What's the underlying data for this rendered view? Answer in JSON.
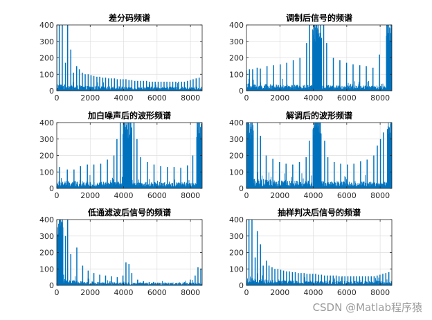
{
  "figure": {
    "watermark": "CSDN @Matlab程序猿",
    "colors": {
      "signal": "#0072BD",
      "axes": "#262626",
      "grid": "#dfdfdf",
      "background": "#ffffff"
    }
  },
  "chart_data": [
    {
      "type": "line",
      "title": "差分码频谱",
      "xlim": [
        0,
        8700
      ],
      "ylim": [
        0,
        400
      ],
      "grid": true,
      "xticks": [
        0,
        2000,
        4000,
        6000,
        8000
      ],
      "yticks": [
        0,
        100,
        200,
        300,
        400
      ],
      "floor": {
        "base": 20,
        "amp": 18,
        "decay": 1500,
        "min": 8
      },
      "peaks": [
        [
          0,
          400
        ],
        [
          150,
          400
        ],
        [
          330,
          400
        ],
        [
          520,
          170
        ],
        [
          650,
          400
        ],
        [
          840,
          250
        ],
        [
          1000,
          110
        ],
        [
          1190,
          150
        ],
        [
          1350,
          130
        ],
        [
          1530,
          110
        ],
        [
          1700,
          100
        ],
        [
          1880,
          100
        ],
        [
          2050,
          95
        ],
        [
          2220,
          90
        ],
        [
          2400,
          85
        ],
        [
          2570,
          85
        ],
        [
          2750,
          80
        ],
        [
          2920,
          80
        ],
        [
          3100,
          75
        ],
        [
          3270,
          75
        ],
        [
          3450,
          75
        ],
        [
          3620,
          70
        ],
        [
          3800,
          70
        ],
        [
          3970,
          70
        ],
        [
          4140,
          70
        ],
        [
          4320,
          65
        ],
        [
          4490,
          65
        ],
        [
          4670,
          60
        ],
        [
          4840,
          60
        ],
        [
          5020,
          60
        ],
        [
          5190,
          60
        ],
        [
          5370,
          60
        ],
        [
          5540,
          55
        ],
        [
          5720,
          55
        ],
        [
          5890,
          55
        ],
        [
          6070,
          55
        ],
        [
          6240,
          55
        ],
        [
          6420,
          55
        ],
        [
          6590,
          55
        ],
        [
          6770,
          55
        ],
        [
          6940,
          55
        ],
        [
          7120,
          55
        ],
        [
          7290,
          55
        ],
        [
          7470,
          55
        ],
        [
          7640,
          55
        ],
        [
          7820,
          60
        ],
        [
          7990,
          65
        ],
        [
          8160,
          70
        ],
        [
          8340,
          75
        ],
        [
          8520,
          80
        ]
      ]
    },
    {
      "type": "line",
      "title": "调制后信号的频谱",
      "xlim": [
        0,
        8700
      ],
      "ylim": [
        0,
        400
      ],
      "grid": true,
      "xticks": [
        0,
        2000,
        4000,
        6000,
        8000
      ],
      "yticks": [
        0,
        100,
        200,
        300,
        400
      ],
      "floor": {
        "base": 25,
        "amp": 12,
        "decay": 4000,
        "min": 10
      },
      "bands": [
        [
          3950,
          4500,
          400
        ],
        [
          8350,
          8700,
          400
        ]
      ],
      "peaks": [
        [
          0,
          125
        ],
        [
          180,
          130
        ],
        [
          370,
          130
        ],
        [
          640,
          140
        ],
        [
          830,
          135
        ],
        [
          1230,
          150
        ],
        [
          1620,
          155
        ],
        [
          2020,
          160
        ],
        [
          2410,
          170
        ],
        [
          2800,
          185
        ],
        [
          3200,
          200
        ],
        [
          3600,
          290
        ],
        [
          3780,
          400
        ],
        [
          4620,
          400
        ],
        [
          4800,
          290
        ],
        [
          5200,
          200
        ],
        [
          5590,
          185
        ],
        [
          5990,
          170
        ],
        [
          6380,
          160
        ],
        [
          6780,
          155
        ],
        [
          7170,
          150
        ],
        [
          7570,
          140
        ],
        [
          7960,
          220
        ]
      ]
    },
    {
      "type": "line",
      "title": "加白噪声后的波形频谱",
      "xlim": [
        0,
        8700
      ],
      "ylim": [
        0,
        400
      ],
      "grid": true,
      "xticks": [
        0,
        2000,
        4000,
        6000,
        8000
      ],
      "yticks": [
        0,
        100,
        200,
        300,
        400
      ],
      "floor": {
        "base": 30,
        "amp": 10,
        "decay": 4000,
        "min": 12
      },
      "bands": [
        [
          3950,
          4500,
          400
        ],
        [
          8350,
          8700,
          400
        ]
      ],
      "peaks": [
        [
          170,
          130
        ],
        [
          630,
          115
        ],
        [
          1030,
          115
        ],
        [
          1420,
          135
        ],
        [
          1830,
          145
        ],
        [
          2220,
          145
        ],
        [
          2630,
          150
        ],
        [
          3030,
          175
        ],
        [
          3420,
          200
        ],
        [
          3600,
          300
        ],
        [
          3800,
          400
        ],
        [
          4620,
          400
        ],
        [
          4800,
          300
        ],
        [
          5020,
          190
        ],
        [
          5420,
          160
        ],
        [
          5820,
          145
        ],
        [
          6220,
          135
        ],
        [
          6620,
          130
        ],
        [
          7020,
          130
        ],
        [
          7420,
          125
        ],
        [
          7820,
          140
        ],
        [
          8140,
          200
        ]
      ]
    },
    {
      "type": "line",
      "title": "解调后的波形频谱",
      "xlim": [
        0,
        8700
      ],
      "ylim": [
        0,
        400
      ],
      "grid": true,
      "xticks": [
        0,
        2000,
        4000,
        6000,
        8000
      ],
      "yticks": [
        0,
        100,
        200,
        300,
        400
      ],
      "floor": {
        "base": 35,
        "amp": 20,
        "decay": 2500,
        "min": 15
      },
      "bands": [
        [
          0,
          420,
          400
        ],
        [
          3960,
          4480,
          400
        ],
        [
          8420,
          8700,
          400
        ]
      ],
      "peaks": [
        [
          650,
          400
        ],
        [
          840,
          320
        ],
        [
          1180,
          200
        ],
        [
          1580,
          180
        ],
        [
          1980,
          160
        ],
        [
          2370,
          150
        ],
        [
          2770,
          145
        ],
        [
          3170,
          160
        ],
        [
          3570,
          190
        ],
        [
          3760,
          290
        ],
        [
          4680,
          290
        ],
        [
          4870,
          190
        ],
        [
          5250,
          160
        ],
        [
          5640,
          150
        ],
        [
          6040,
          145
        ],
        [
          6430,
          150
        ],
        [
          6830,
          165
        ],
        [
          7220,
          175
        ],
        [
          7620,
          200
        ],
        [
          7830,
          260
        ],
        [
          8020,
          300
        ],
        [
          8200,
          340
        ]
      ]
    },
    {
      "type": "line",
      "title": "低通滤波后信号的频谱",
      "xlim": [
        0,
        8700
      ],
      "ylim": [
        0,
        400
      ],
      "grid": true,
      "xticks": [
        0,
        2000,
        4000,
        6000,
        8000
      ],
      "yticks": [
        0,
        100,
        200,
        300,
        400
      ],
      "floor": {
        "base": 15,
        "amp": 25,
        "decay": 1200,
        "min": 3
      },
      "bands": [
        [
          0,
          380,
          400
        ]
      ],
      "peaks": [
        [
          520,
          300
        ],
        [
          650,
          400
        ],
        [
          840,
          190
        ],
        [
          1200,
          230
        ],
        [
          1550,
          120
        ],
        [
          1880,
          90
        ],
        [
          2220,
          75
        ],
        [
          2570,
          65
        ],
        [
          2920,
          60
        ],
        [
          3270,
          55
        ],
        [
          3620,
          50
        ],
        [
          3960,
          60
        ],
        [
          4140,
          140
        ],
        [
          4320,
          130
        ],
        [
          4490,
          75
        ],
        [
          4840,
          35
        ],
        [
          5190,
          25
        ],
        [
          5540,
          20
        ],
        [
          5890,
          15
        ],
        [
          6240,
          15
        ],
        [
          6590,
          12
        ],
        [
          6940,
          12
        ],
        [
          7290,
          15
        ],
        [
          7640,
          20
        ],
        [
          7990,
          35
        ],
        [
          8280,
          60
        ],
        [
          8450,
          110
        ],
        [
          8620,
          100
        ]
      ]
    },
    {
      "type": "line",
      "title": "抽样判决后信号的频谱",
      "xlim": [
        0,
        8700
      ],
      "ylim": [
        0,
        400
      ],
      "grid": true,
      "xticks": [
        0,
        2000,
        4000,
        6000,
        8000
      ],
      "yticks": [
        0,
        100,
        200,
        300,
        400
      ],
      "floor": {
        "base": 22,
        "amp": 18,
        "decay": 1500,
        "min": 8
      },
      "peaks": [
        [
          0,
          400
        ],
        [
          150,
          400
        ],
        [
          330,
          400
        ],
        [
          520,
          170
        ],
        [
          650,
          330
        ],
        [
          840,
          250
        ],
        [
          1000,
          120
        ],
        [
          1190,
          150
        ],
        [
          1350,
          120
        ],
        [
          1530,
          110
        ],
        [
          1700,
          100
        ],
        [
          1880,
          100
        ],
        [
          2050,
          95
        ],
        [
          2220,
          90
        ],
        [
          2400,
          85
        ],
        [
          2570,
          85
        ],
        [
          2750,
          80
        ],
        [
          2920,
          80
        ],
        [
          3100,
          75
        ],
        [
          3270,
          75
        ],
        [
          3450,
          75
        ],
        [
          3620,
          70
        ],
        [
          3800,
          70
        ],
        [
          3970,
          70
        ],
        [
          4140,
          70
        ],
        [
          4320,
          65
        ],
        [
          4490,
          65
        ],
        [
          4670,
          60
        ],
        [
          4840,
          60
        ],
        [
          5020,
          60
        ],
        [
          5190,
          60
        ],
        [
          5370,
          60
        ],
        [
          5540,
          55
        ],
        [
          5720,
          55
        ],
        [
          5890,
          55
        ],
        [
          6070,
          55
        ],
        [
          6240,
          55
        ],
        [
          6420,
          55
        ],
        [
          6590,
          55
        ],
        [
          6770,
          55
        ],
        [
          6940,
          55
        ],
        [
          7120,
          55
        ],
        [
          7290,
          55
        ],
        [
          7470,
          55
        ],
        [
          7640,
          55
        ],
        [
          7820,
          60
        ],
        [
          7990,
          65
        ],
        [
          8160,
          70
        ],
        [
          8340,
          75
        ],
        [
          8520,
          80
        ]
      ]
    }
  ]
}
